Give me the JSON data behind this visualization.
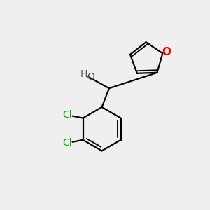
{
  "background_color": "#EFEFEF",
  "bond_color": "#000000",
  "bond_width": 1.6,
  "atom_O_color": "#FF0000",
  "atom_Cl_color": "#00AA00",
  "atom_OH_O_color": "#555555",
  "atom_OH_H_color": "#555555",
  "figsize": [
    3.0,
    3.0
  ],
  "dpi": 100,
  "xlim": [
    0,
    10
  ],
  "ylim": [
    0,
    10
  ]
}
